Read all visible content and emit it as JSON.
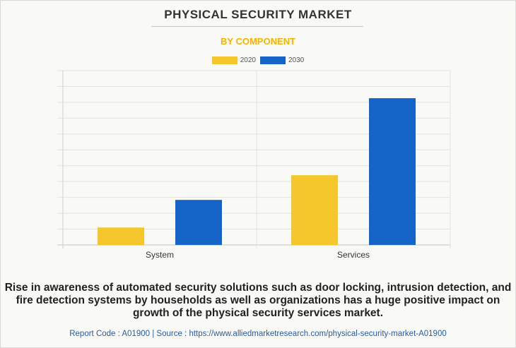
{
  "chart_data": {
    "type": "bar",
    "title": "PHYSICAL SECURITY MARKET",
    "subtitle": "BY COMPONENT",
    "categories": [
      "System",
      "Services"
    ],
    "series": [
      {
        "name": "2020",
        "values": [
          1.2,
          4.8
        ],
        "color": "#f5c72d"
      },
      {
        "name": "2030",
        "values": [
          3.1,
          10.1
        ],
        "color": "#1565c8"
      }
    ],
    "xlabel": "",
    "ylabel": "",
    "ylim": [
      0,
      12
    ],
    "grid": true,
    "legend": "top-center"
  },
  "caption": "Rise in awareness of automated security solutions such as door locking, intrusion detection, and fire detection systems by households as well as organizations has a huge positive impact on growth of the physical security services market.",
  "footer": "Report Code : A01900  |  Source : https://www.alliedmarketresearch.com/physical-security-market-A01900"
}
